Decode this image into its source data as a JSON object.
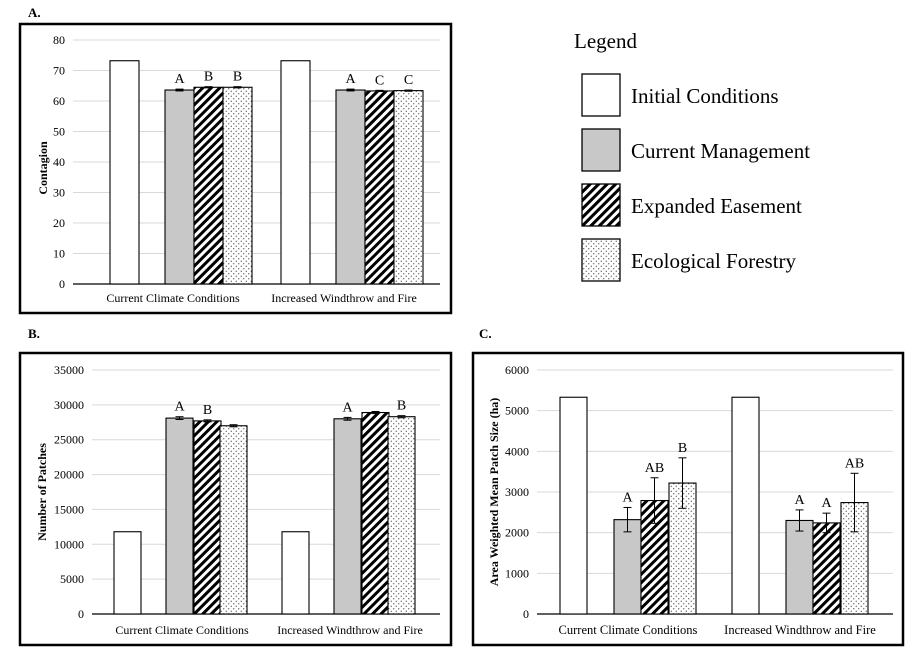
{
  "legend": {
    "title": "Legend",
    "items": [
      {
        "label": "Initial Conditions",
        "pattern": "white"
      },
      {
        "label": "Current Management",
        "pattern": "gray"
      },
      {
        "label": "Expanded Easement",
        "pattern": "hatch"
      },
      {
        "label": "Ecological Forestry",
        "pattern": "dots"
      }
    ]
  },
  "colors": {
    "gray": "#c8c8c8",
    "grid": "#d9d9d9",
    "frame": "#000000"
  },
  "chart_data": [
    {
      "id": "A",
      "panel_label": "A.",
      "type": "bar",
      "ylabel": "Contagion",
      "xlabel": "",
      "ylim": [
        0,
        80
      ],
      "yticks": [
        0,
        10,
        20,
        30,
        40,
        50,
        60,
        70,
        80
      ],
      "categories": [
        "Current Climate Conditions",
        "Increased Windthrow and Fire"
      ],
      "series": [
        {
          "name": "Initial Conditions",
          "values": [
            73.2,
            73.2
          ],
          "errors": [
            0,
            0
          ],
          "letters": [
            "",
            ""
          ]
        },
        {
          "name": "Current Management",
          "values": [
            63.6,
            63.6
          ],
          "errors": [
            0.3,
            0.3
          ],
          "letters": [
            "A",
            "A"
          ]
        },
        {
          "name": "Expanded Easement",
          "values": [
            64.5,
            63.3
          ],
          "errors": [
            0.2,
            0.2
          ],
          "letters": [
            "B",
            "C"
          ]
        },
        {
          "name": "Ecological Forestry",
          "values": [
            64.5,
            63.4
          ],
          "errors": [
            0.2,
            0.2
          ],
          "letters": [
            "B",
            "C"
          ]
        }
      ]
    },
    {
      "id": "B",
      "panel_label": "B.",
      "type": "bar",
      "ylabel": "Number of Patches",
      "xlabel": "",
      "ylim": [
        0,
        35000
      ],
      "yticks": [
        0,
        5000,
        10000,
        15000,
        20000,
        25000,
        30000,
        35000
      ],
      "categories": [
        "Current Climate Conditions",
        "Increased Windthrow and Fire"
      ],
      "series": [
        {
          "name": "Initial Conditions",
          "values": [
            11800,
            11800
          ],
          "errors": [
            0,
            0
          ],
          "letters": [
            "",
            ""
          ]
        },
        {
          "name": "Current Management",
          "values": [
            28100,
            28000
          ],
          "errors": [
            200,
            200
          ],
          "letters": [
            "A",
            "A"
          ]
        },
        {
          "name": "Expanded Easement",
          "values": [
            27700,
            28900
          ],
          "errors": [
            150,
            150
          ],
          "letters": [
            "B",
            ""
          ]
        },
        {
          "name": "Ecological Forestry",
          "values": [
            27000,
            28300
          ],
          "errors": [
            150,
            150
          ],
          "letters": [
            "",
            "B"
          ]
        }
      ]
    },
    {
      "id": "C",
      "panel_label": "C.",
      "type": "bar",
      "ylabel": "Area Weighted Mean Patch Size (ha)",
      "xlabel": "",
      "ylim": [
        0,
        6000
      ],
      "yticks": [
        0,
        1000,
        2000,
        3000,
        4000,
        5000,
        6000
      ],
      "categories": [
        "Current Climate Conditions",
        "Increased Windthrow and Fire"
      ],
      "series": [
        {
          "name": "Initial Conditions",
          "values": [
            5330,
            5330
          ],
          "errors": [
            0,
            0
          ],
          "letters": [
            "",
            ""
          ]
        },
        {
          "name": "Current Management",
          "values": [
            2320,
            2300
          ],
          "errors": [
            300,
            260
          ],
          "letters": [
            "A",
            "A"
          ]
        },
        {
          "name": "Expanded Easement",
          "values": [
            2790,
            2240
          ],
          "errors": [
            560,
            240
          ],
          "letters": [
            "AB",
            "A"
          ]
        },
        {
          "name": "Ecological Forestry",
          "values": [
            3220,
            2740
          ],
          "errors": [
            620,
            720
          ],
          "letters": [
            "B",
            "AB"
          ]
        }
      ]
    }
  ]
}
